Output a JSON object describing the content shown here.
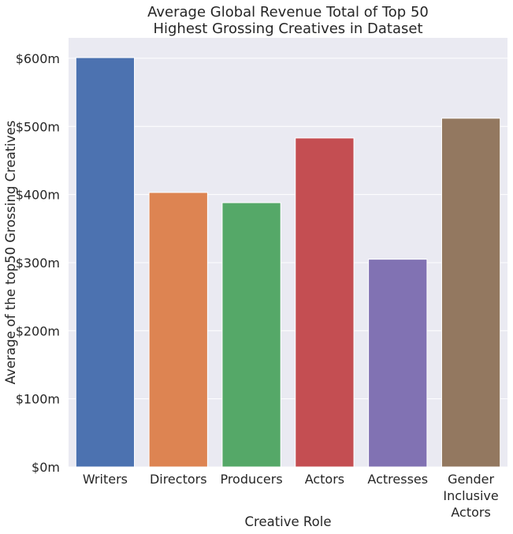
{
  "chart_data": {
    "type": "bar",
    "title_lines": [
      "Average Global Revenue Total of Top 50",
      "Highest Grossing Creatives in Dataset"
    ],
    "xlabel": "Creative Role",
    "ylabel": "Average of the top50 Grossing Creatives",
    "categories": [
      [
        "Writers"
      ],
      [
        "Directors"
      ],
      [
        "Producers"
      ],
      [
        "Actors"
      ],
      [
        "Actresses"
      ],
      [
        "Gender",
        "Inclusive",
        "Actors"
      ]
    ],
    "values": [
      601,
      403,
      388,
      483,
      305,
      512
    ],
    "unit": "millions of dollars",
    "ylim": [
      0,
      630
    ],
    "yticks": [
      0,
      100,
      200,
      300,
      400,
      500,
      600
    ],
    "ytick_labels": [
      "$0m",
      "$100m",
      "$200m",
      "$300m",
      "$400m",
      "$500m",
      "$600m"
    ],
    "grid": true,
    "colors": [
      "#4c72b0",
      "#dd8452",
      "#55a868",
      "#c44e52",
      "#8172b3",
      "#937860"
    ],
    "background": "#eaeaf2",
    "gridline_color": "#ffffff"
  }
}
